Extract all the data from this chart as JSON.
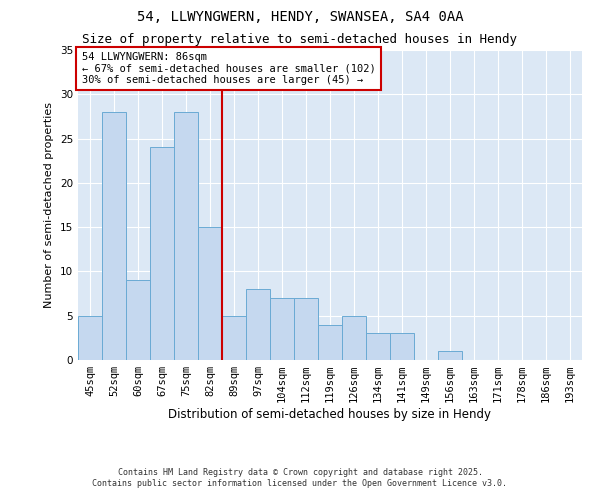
{
  "title1": "54, LLWYNGWERN, HENDY, SWANSEA, SA4 0AA",
  "title2": "Size of property relative to semi-detached houses in Hendy",
  "xlabel": "Distribution of semi-detached houses by size in Hendy",
  "ylabel": "Number of semi-detached properties",
  "categories": [
    "45sqm",
    "52sqm",
    "60sqm",
    "67sqm",
    "75sqm",
    "82sqm",
    "89sqm",
    "97sqm",
    "104sqm",
    "112sqm",
    "119sqm",
    "126sqm",
    "134sqm",
    "141sqm",
    "149sqm",
    "156sqm",
    "163sqm",
    "171sqm",
    "178sqm",
    "186sqm",
    "193sqm"
  ],
  "values": [
    5,
    28,
    9,
    24,
    28,
    15,
    5,
    8,
    7,
    7,
    4,
    5,
    3,
    3,
    0,
    1,
    0,
    0,
    0,
    0,
    0
  ],
  "bar_color": "#c5d8ef",
  "bar_edge_color": "#6aaad4",
  "annotation_box_text": "54 LLWYNGWERN: 86sqm\n← 67% of semi-detached houses are smaller (102)\n30% of semi-detached houses are larger (45) →",
  "annotation_box_color": "#cc0000",
  "ylim": [
    0,
    35
  ],
  "yticks": [
    0,
    5,
    10,
    15,
    20,
    25,
    30,
    35
  ],
  "background_color": "#dce8f5",
  "grid_color": "#ffffff",
  "footer_line1": "Contains HM Land Registry data © Crown copyright and database right 2025.",
  "footer_line2": "Contains public sector information licensed under the Open Government Licence v3.0.",
  "title1_fontsize": 10,
  "title2_fontsize": 9,
  "xlabel_fontsize": 8.5,
  "ylabel_fontsize": 8,
  "tick_fontsize": 7.5,
  "footer_fontsize": 6,
  "ann_fontsize": 7.5
}
